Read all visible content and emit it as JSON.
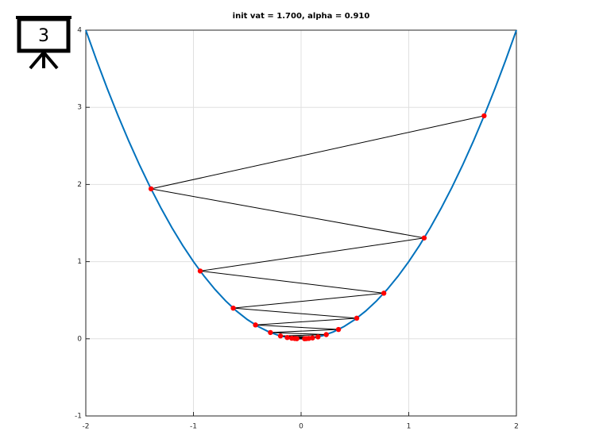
{
  "badge": "3",
  "chart_data": {
    "type": "line",
    "title": "init vat = 1.700, alpha = 0.910",
    "xlim": [
      -2,
      2
    ],
    "ylim": [
      -1,
      4
    ],
    "xticks": [
      -2,
      -1,
      0,
      1,
      2
    ],
    "yticks": [
      -1,
      0,
      1,
      2,
      3,
      4
    ],
    "grid": true,
    "series": [
      {
        "color": "#0072bd",
        "marker": false,
        "x": [
          -2,
          -1.9,
          -1.8,
          -1.7,
          -1.6,
          -1.5,
          -1.4,
          -1.3,
          -1.2,
          -1.1,
          -1,
          -0.9,
          -0.8,
          -0.7,
          -0.6,
          -0.5,
          -0.4,
          -0.3,
          -0.2,
          -0.1,
          0,
          0.1,
          0.2,
          0.3,
          0.4,
          0.5,
          0.6,
          0.7,
          0.8,
          0.9,
          1,
          1.1,
          1.2,
          1.3,
          1.4,
          1.5,
          1.6,
          1.7,
          1.8,
          1.9,
          2
        ],
        "values": [
          4,
          3.61,
          3.24,
          2.89,
          2.56,
          2.25,
          1.96,
          1.69,
          1.44,
          1.21,
          1,
          0.81,
          0.64,
          0.49,
          0.36,
          0.25,
          0.16,
          0.09,
          0.04,
          0.01,
          0,
          0.01,
          0.04,
          0.09,
          0.16,
          0.25,
          0.36,
          0.49,
          0.64,
          0.81,
          1,
          1.21,
          1.44,
          1.69,
          1.96,
          2.25,
          2.56,
          2.89,
          3.24,
          3.61,
          4
        ]
      },
      {
        "color": "#000000",
        "marker": true,
        "marker_color": "#ff0000",
        "x": [
          1.7,
          -1.394,
          1.1431,
          -0.9373,
          0.7686,
          -0.6303,
          0.5168,
          -0.4238,
          0.3475,
          -0.285,
          0.2337,
          -0.1916,
          0.1571,
          -0.1288,
          0.1057,
          -0.0866,
          0.071,
          -0.0583,
          0.0478,
          -0.0392,
          0.0321
        ],
        "values": [
          2.89,
          1.9432,
          1.3067,
          0.8785,
          0.5907,
          0.3973,
          0.2671,
          0.1796,
          0.1208,
          0.0812,
          0.0546,
          0.0367,
          0.0247,
          0.0166,
          0.0112,
          0.0075,
          0.005,
          0.0034,
          0.0023,
          0.0015,
          0.001
        ]
      }
    ]
  }
}
